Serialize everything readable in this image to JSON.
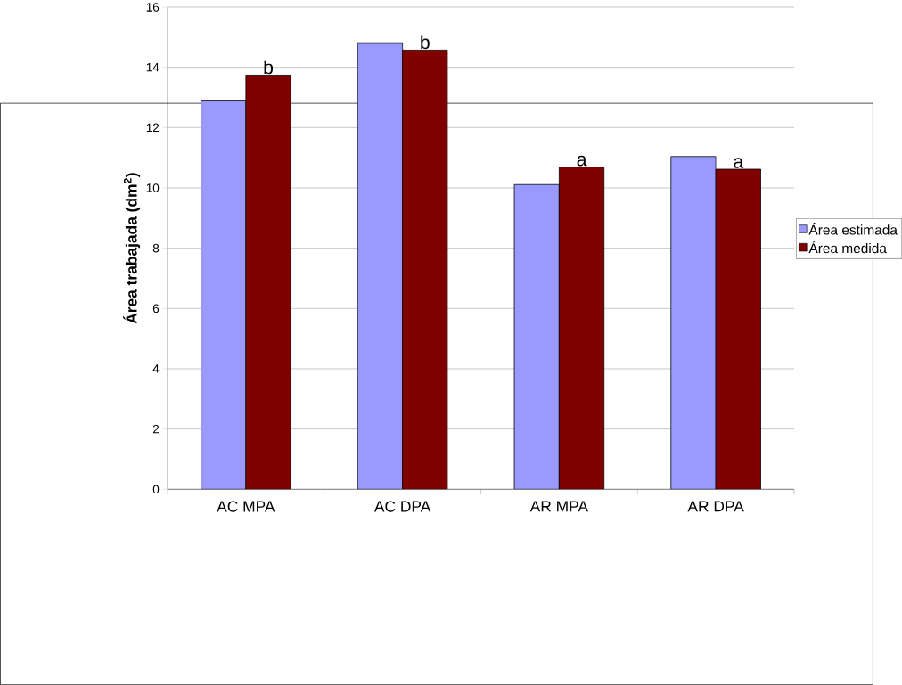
{
  "chart_data": {
    "type": "bar",
    "ylabel": "Área trabajada (dm$^{2}$)",
    "categories": [
      "AC MPA",
      "AC DPA",
      "AR MPA",
      "AR DPA"
    ],
    "series": [
      {
        "name": "Área estimada",
        "color": "#9999ff",
        "values": [
          12.91,
          14.82,
          10.11,
          11.04
        ]
      },
      {
        "name": "Área medida",
        "color": "#800000",
        "values": [
          13.74,
          14.57,
          10.69,
          10.62
        ]
      }
    ],
    "ylim": [
      0,
      16
    ],
    "yticks": [
      0,
      2,
      4,
      6,
      8,
      10,
      12,
      14,
      16
    ],
    "grid": "y",
    "legend": "right",
    "annotations": [
      {
        "text": "b",
        "x": "AC MPA",
        "y": 13.74
      },
      {
        "text": "b",
        "x": "AC DPA",
        "y": 14.57
      },
      {
        "text": "a",
        "x": "AR MPA",
        "y": 10.69
      },
      {
        "text": "a",
        "x": "AR DPA",
        "y": 10.62
      }
    ]
  }
}
